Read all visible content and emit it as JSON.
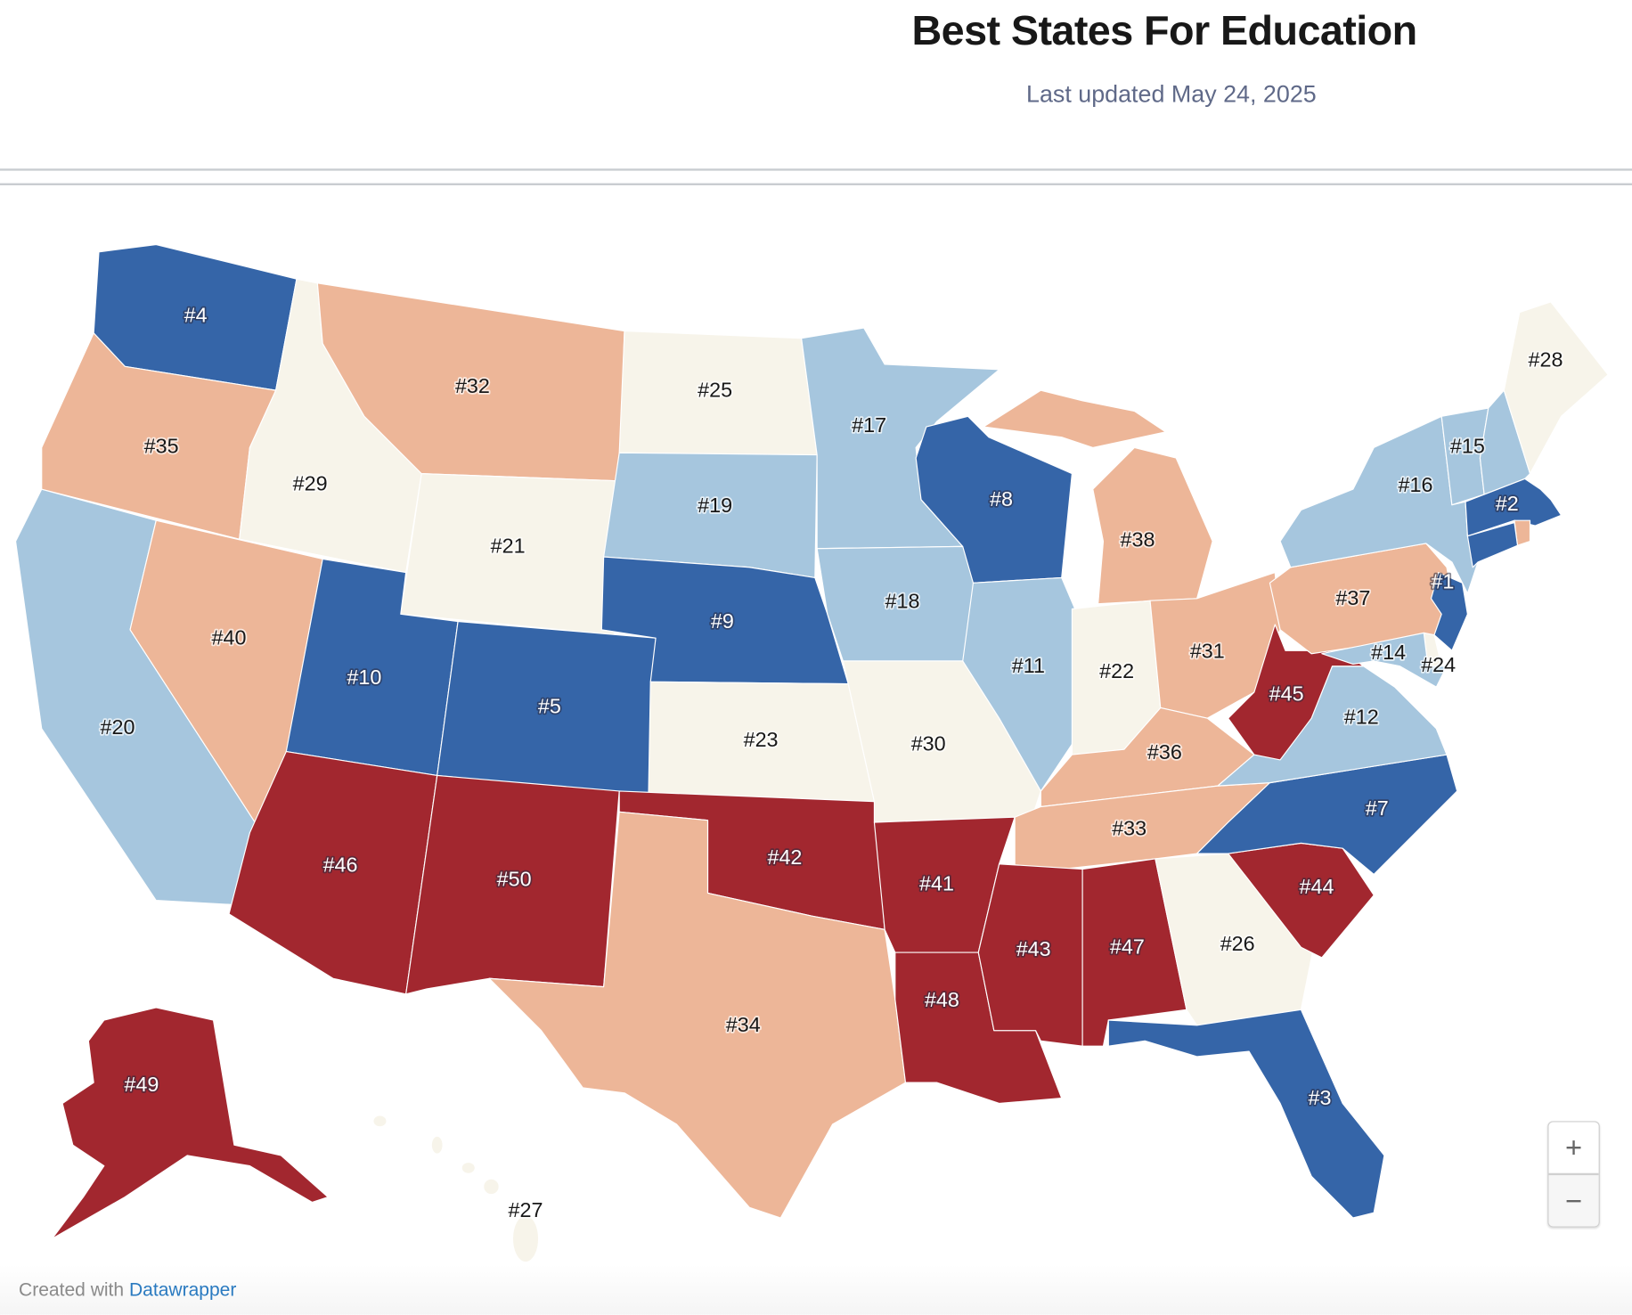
{
  "header": {
    "title": "Best States For Education",
    "subtitle": "Last updated May 24, 2025"
  },
  "colors": {
    "rank_1_10": "#3565a8",
    "rank_11_20": "#a6c6de",
    "rank_21_30": "#f7f4ea",
    "rank_31_40": "#edb698",
    "rank_41_50": "#a2272f"
  },
  "map": {
    "states": [
      {
        "label": "#4",
        "tier": "rank_1_10"
      },
      {
        "label": "#35",
        "tier": "rank_31_40"
      },
      {
        "label": "#20",
        "tier": "rank_11_20"
      },
      {
        "label": "#40",
        "tier": "rank_31_40"
      },
      {
        "label": "#29",
        "tier": "rank_21_30"
      },
      {
        "label": "#32",
        "tier": "rank_31_40"
      },
      {
        "label": "#21",
        "tier": "rank_21_30"
      },
      {
        "label": "#10",
        "tier": "rank_1_10"
      },
      {
        "label": "#5",
        "tier": "rank_1_10"
      },
      {
        "label": "#46",
        "tier": "rank_41_50"
      },
      {
        "label": "#50",
        "tier": "rank_41_50"
      },
      {
        "label": "#25",
        "tier": "rank_21_30"
      },
      {
        "label": "#19",
        "tier": "rank_11_20"
      },
      {
        "label": "#9",
        "tier": "rank_1_10"
      },
      {
        "label": "#23",
        "tier": "rank_21_30"
      },
      {
        "label": "#42",
        "tier": "rank_41_50"
      },
      {
        "label": "#34",
        "tier": "rank_31_40"
      },
      {
        "label": "#17",
        "tier": "rank_11_20"
      },
      {
        "label": "#18",
        "tier": "rank_11_20"
      },
      {
        "label": "#30",
        "tier": "rank_21_30"
      },
      {
        "label": "#41",
        "tier": "rank_41_50"
      },
      {
        "label": "#48",
        "tier": "rank_41_50"
      },
      {
        "label": "#8",
        "tier": "rank_1_10"
      },
      {
        "label": "#11",
        "tier": "rank_11_20"
      },
      {
        "label": "#38",
        "tier": "rank_31_40"
      },
      {
        "label": "#22",
        "tier": "rank_21_30"
      },
      {
        "label": "#31",
        "tier": "rank_31_40"
      },
      {
        "label": "#36",
        "tier": "rank_31_40"
      },
      {
        "label": "#33",
        "tier": "rank_31_40"
      },
      {
        "label": "#43",
        "tier": "rank_41_50"
      },
      {
        "label": "#47",
        "tier": "rank_41_50"
      },
      {
        "label": "#26",
        "tier": "rank_21_30"
      },
      {
        "label": "#3",
        "tier": "rank_1_10"
      },
      {
        "label": "#44",
        "tier": "rank_41_50"
      },
      {
        "label": "#7",
        "tier": "rank_1_10"
      },
      {
        "label": "#12",
        "tier": "rank_11_20"
      },
      {
        "label": "#45",
        "tier": "rank_41_50"
      },
      {
        "label": "#37",
        "tier": "rank_31_40"
      },
      {
        "label": "#16",
        "tier": "rank_11_20"
      },
      {
        "label": "",
        "tier": "rank_11_20"
      },
      {
        "label": "#15",
        "tier": "rank_11_20"
      },
      {
        "label": "#28",
        "tier": "rank_21_30"
      },
      {
        "label": "#2",
        "tier": "rank_1_10"
      },
      {
        "label": "",
        "tier": "rank_31_40"
      },
      {
        "label": "",
        "tier": "rank_1_10"
      },
      {
        "label": "#1",
        "tier": "rank_1_10"
      },
      {
        "label": "#24",
        "tier": "rank_21_30"
      },
      {
        "label": "#14",
        "tier": "rank_11_20"
      },
      {
        "label": "#49",
        "tier": "rank_41_50"
      },
      {
        "label": "#27",
        "tier": "rank_21_30"
      }
    ]
  },
  "controls": {
    "zoom_in": "+",
    "zoom_out": "−"
  },
  "footer": {
    "created_with": "Created with",
    "link": "Datawrapper"
  }
}
